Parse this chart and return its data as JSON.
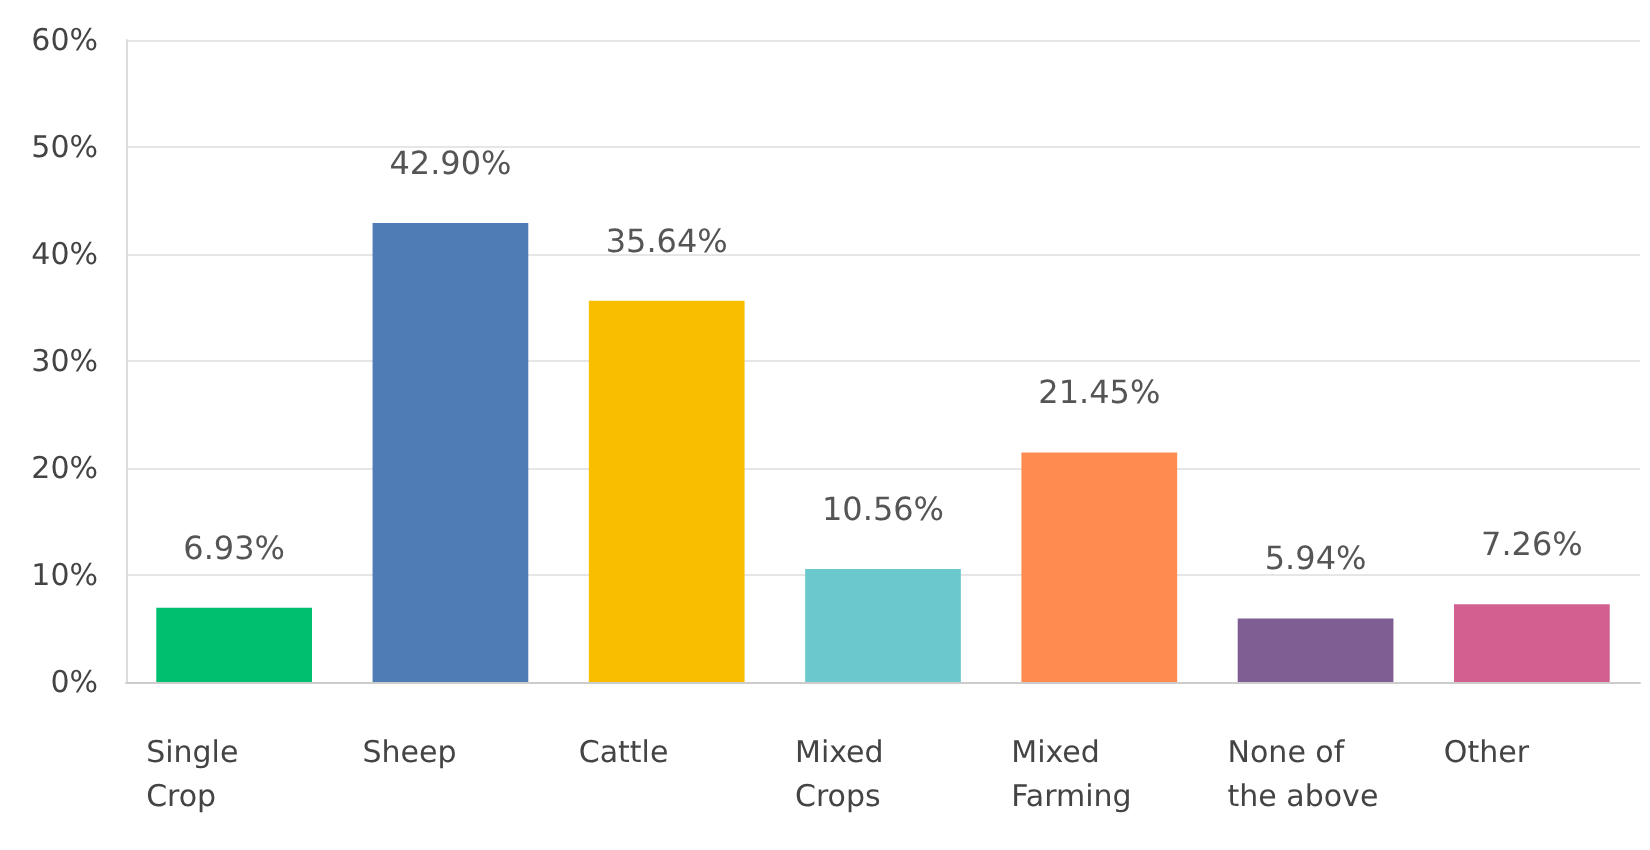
{
  "chart_data": {
    "type": "bar",
    "categories": [
      "Single Crop",
      "Sheep",
      "Cattle",
      "Mixed Crops",
      "Mixed Farming",
      "None of the above",
      "Other"
    ],
    "values": [
      6.93,
      42.9,
      35.64,
      10.56,
      21.45,
      5.94,
      7.26
    ],
    "colors": [
      "#00bf6f",
      "#507cb6",
      "#f9be00",
      "#6bc8cd",
      "#ff8b4f",
      "#7f5f93",
      "#d25f90"
    ],
    "value_labels": [
      "6.93%",
      "42.90%",
      "35.64%",
      "10.56%",
      "21.45%",
      "5.94%",
      "7.26%"
    ],
    "ylim": [
      0,
      60
    ],
    "yticks": [
      {
        "value": 0,
        "label": "0%"
      },
      {
        "value": 10,
        "label": "10%"
      },
      {
        "value": 20,
        "label": "20%"
      },
      {
        "value": 30,
        "label": "30%"
      },
      {
        "value": 40,
        "label": "40%"
      },
      {
        "value": 50,
        "label": "50%"
      },
      {
        "value": 60,
        "label": "60%"
      }
    ],
    "grid": "y"
  }
}
